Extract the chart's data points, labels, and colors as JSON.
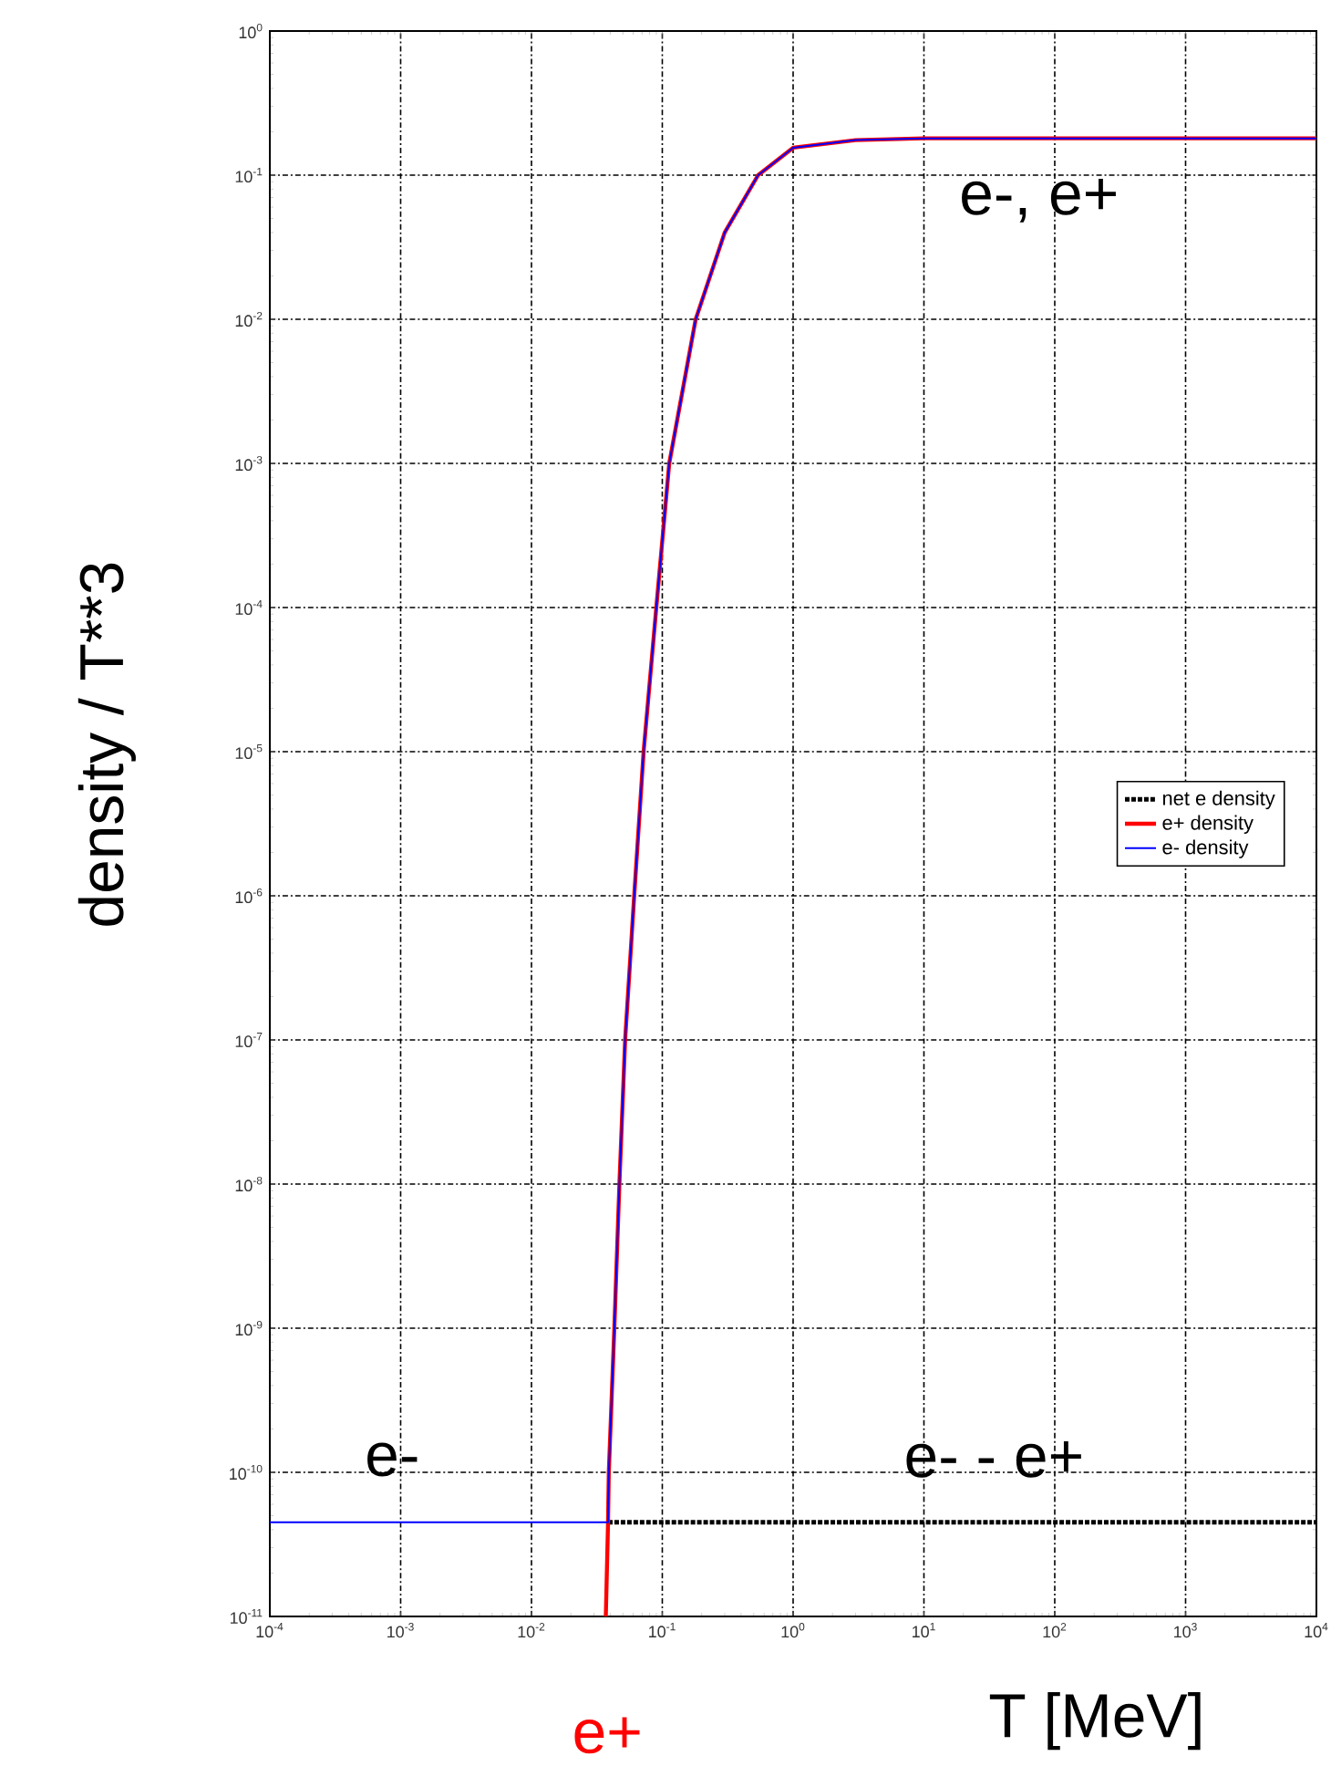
{
  "chart_data": {
    "type": "line",
    "xlabel": "T [MeV]",
    "ylabel": "density / T**3",
    "log": "xy",
    "grid": true,
    "legend": "right",
    "xlim": [
      0.0001,
      10000
    ],
    "ylim": [
      1e-11,
      1
    ],
    "xticks": [
      {
        "value": 0.0001,
        "label": "10$^{-4}$"
      },
      {
        "value": 0.001,
        "label": "10$^{-3}$"
      },
      {
        "value": 0.01,
        "label": "10$^{-2}$"
      },
      {
        "value": 0.1,
        "label": "10$^{-1}$"
      },
      {
        "value": 1,
        "label": "10$^{0}$"
      },
      {
        "value": 10,
        "label": "10$^{1}$"
      },
      {
        "value": 100,
        "label": "10$^{2}$"
      },
      {
        "value": 1000,
        "label": "10$^{3}$"
      },
      {
        "value": 10000,
        "label": "10$^{4}$"
      }
    ],
    "yticks": [
      {
        "value": 1e-11,
        "label": "10$^{-11}$"
      },
      {
        "value": 1e-10,
        "label": "10$^{-10}$"
      },
      {
        "value": 1e-09,
        "label": "10$^{-9}$"
      },
      {
        "value": 1e-08,
        "label": "10$^{-8}$"
      },
      {
        "value": 1e-07,
        "label": "10$^{-7}$"
      },
      {
        "value": 1e-06,
        "label": "10$^{-6}$"
      },
      {
        "value": 1e-05,
        "label": "10$^{-5}$"
      },
      {
        "value": 0.0001,
        "label": "10$^{-4}$"
      },
      {
        "value": 0.001,
        "label": "10$^{-3}$"
      },
      {
        "value": 0.01,
        "label": "10$^{-2}$"
      },
      {
        "value": 0.1,
        "label": "10$^{-1}$"
      },
      {
        "value": 1,
        "label": "10$^{0}$"
      }
    ],
    "series": [
      {
        "name": "net e density",
        "color": "#000000",
        "line_style": "dotted",
        "x": [
          0.0385,
          10000
        ],
        "values": [
          4.5e-11,
          4.5e-11
        ]
      },
      {
        "name": "e+ density",
        "color": "#ff0000",
        "line_style": "solid",
        "x": [
          0.037,
          0.0385,
          0.039,
          0.043,
          0.047,
          0.052,
          0.061,
          0.072,
          0.09,
          0.113,
          0.18,
          0.3,
          0.54,
          1.0,
          3,
          10,
          100,
          1000,
          10000
        ],
        "values": [
          1e-11,
          4.5e-11,
          1e-10,
          1e-09,
          1e-08,
          1e-07,
          1e-06,
          1e-05,
          0.0001,
          0.001,
          0.01,
          0.04,
          0.1,
          0.155,
          0.175,
          0.18,
          0.18,
          0.18,
          0.18
        ]
      },
      {
        "name": "e- density",
        "color": "#0000ff",
        "line_style": "solid",
        "x": [
          0.0001,
          0.0385,
          0.039,
          0.043,
          0.047,
          0.052,
          0.061,
          0.072,
          0.09,
          0.113,
          0.18,
          0.3,
          0.54,
          1.0,
          3,
          10,
          100,
          1000,
          10000
        ],
        "values": [
          4.5e-11,
          4.5e-11,
          1e-10,
          1e-09,
          1e-08,
          1e-07,
          1e-06,
          1e-05,
          0.0001,
          0.001,
          0.01,
          0.04,
          0.1,
          0.155,
          0.175,
          0.18,
          0.18,
          0.18,
          0.18
        ]
      }
    ],
    "annotations": [
      "e-, e+",
      "e-",
      "e- - e+",
      "e+"
    ]
  }
}
